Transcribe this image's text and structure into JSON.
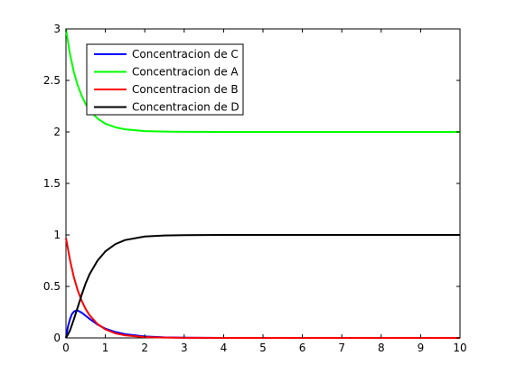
{
  "chart_data": {
    "type": "line",
    "xlim": [
      0,
      10
    ],
    "ylim": [
      0,
      3
    ],
    "x_ticks": [
      0,
      1,
      2,
      3,
      4,
      5,
      6,
      7,
      8,
      9,
      10
    ],
    "y_ticks": [
      0,
      0.5,
      1,
      1.5,
      2,
      2.5,
      3
    ],
    "x_tick_labels": [
      "0",
      "1",
      "2",
      "3",
      "4",
      "5",
      "6",
      "7",
      "8",
      "9",
      "10"
    ],
    "y_tick_labels": [
      "0",
      "0.5",
      "1",
      "1.5",
      "2",
      "2.5",
      "3"
    ],
    "grid": false,
    "legend_position": "top-left",
    "series": [
      {
        "name": "Concentracion de C",
        "color": "#0000ff",
        "x": [
          0,
          0.05,
          0.1,
          0.15,
          0.2,
          0.25,
          0.3,
          0.4,
          0.5,
          0.6,
          0.8,
          1,
          1.25,
          1.5,
          2,
          2.5,
          3,
          4,
          5,
          6,
          8,
          10
        ],
        "y": [
          0,
          0.11,
          0.18,
          0.23,
          0.255,
          0.265,
          0.265,
          0.245,
          0.215,
          0.185,
          0.13,
          0.09,
          0.058,
          0.036,
          0.014,
          0.005,
          0.002,
          0,
          0,
          0,
          0,
          0
        ]
      },
      {
        "name": "Concentracion de A",
        "color": "#00ff00",
        "x": [
          0,
          0.1,
          0.2,
          0.3,
          0.4,
          0.5,
          0.6,
          0.8,
          1,
          1.25,
          1.5,
          2,
          2.5,
          3,
          4,
          5,
          6,
          8,
          10
        ],
        "y": [
          3,
          2.76,
          2.58,
          2.45,
          2.35,
          2.27,
          2.21,
          2.13,
          2.08,
          2.045,
          2.025,
          2.008,
          2.003,
          2.001,
          2,
          2,
          2,
          2,
          2
        ]
      },
      {
        "name": "Concentracion de B",
        "color": "#ff0000",
        "x": [
          0,
          0.1,
          0.2,
          0.3,
          0.4,
          0.5,
          0.6,
          0.8,
          1,
          1.25,
          1.5,
          2,
          2.5,
          3,
          4,
          5,
          6,
          8,
          10
        ],
        "y": [
          0.97,
          0.76,
          0.59,
          0.46,
          0.36,
          0.28,
          0.22,
          0.135,
          0.083,
          0.045,
          0.025,
          0.008,
          0.003,
          0.001,
          0,
          0,
          0,
          0,
          0
        ]
      },
      {
        "name": "Concentracion de D",
        "color": "#000000",
        "x": [
          0,
          0.1,
          0.2,
          0.3,
          0.4,
          0.5,
          0.6,
          0.8,
          1,
          1.25,
          1.5,
          2,
          2.5,
          3,
          4,
          5,
          6,
          8,
          10
        ],
        "y": [
          0,
          0.07,
          0.18,
          0.3,
          0.42,
          0.53,
          0.62,
          0.75,
          0.84,
          0.91,
          0.95,
          0.985,
          0.995,
          0.998,
          1,
          1,
          1,
          1,
          1
        ]
      }
    ]
  }
}
